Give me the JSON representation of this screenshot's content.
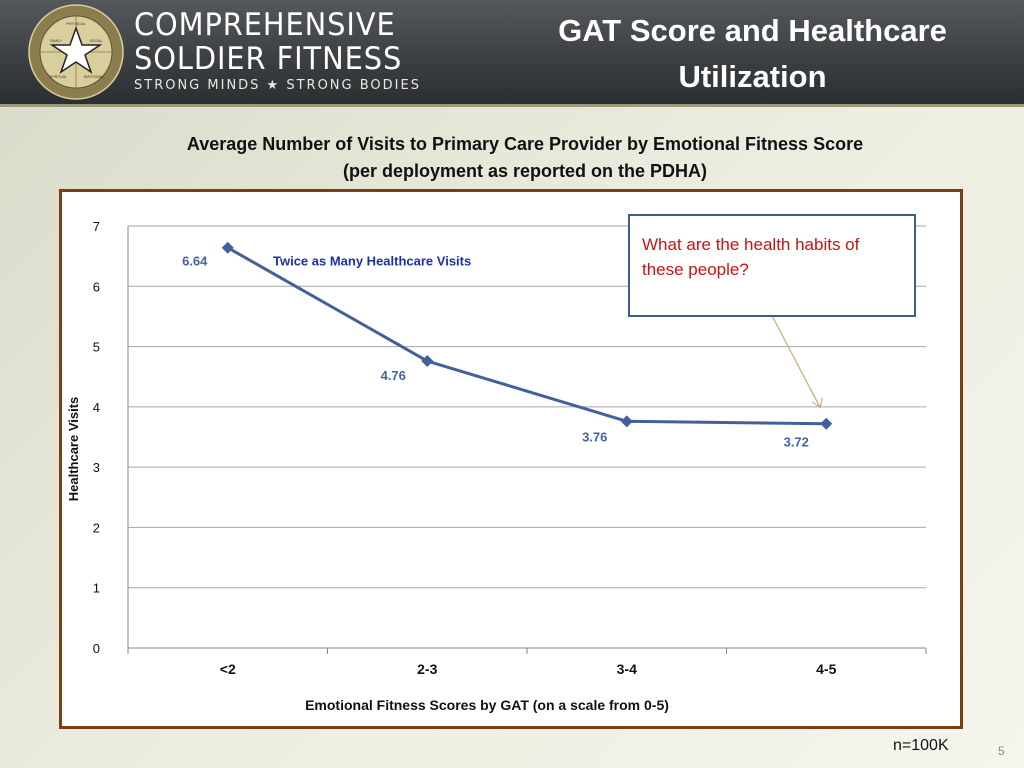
{
  "header": {
    "brand_line1": "COMPREHENSIVE",
    "brand_line2": "SOLDIER FITNESS",
    "brand_tagline": "STRONG MINDS ★ STRONG BODIES",
    "slide_title_line1": "GAT Score and Healthcare",
    "slide_title_line2": "Utilization",
    "seal": {
      "ring_text": "COMPREHENSIVE SOLDIER FITNESS",
      "segments": [
        "PHYSICAL",
        "FAMILY",
        "SOCIAL",
        "SPIRITUAL",
        "EMOTIONAL"
      ],
      "bottom_text": "STRONG MINDS ★ STRONG BODIES"
    }
  },
  "chart_title_line1": "Average Number of Visits to Primary Care Provider by Emotional Fitness Score",
  "chart_title_line2": "(per deployment as reported on the PDHA)",
  "chart_data": {
    "type": "line",
    "categories": [
      "<2",
      "2-3",
      "3-4",
      "4-5"
    ],
    "series": [
      {
        "values": [
          6.64,
          4.76,
          3.76,
          3.72
        ],
        "color": "#43609c"
      }
    ],
    "data_labels": [
      "6.64",
      "4.76",
      "3.76",
      "3.72"
    ],
    "ylabel": "Healthcare Visits",
    "xlabel": "Emotional Fitness Scores by GAT (on a scale from 0-5)",
    "ylim": [
      0,
      7
    ],
    "yticks": [
      0,
      1,
      2,
      3,
      4,
      5,
      6,
      7
    ],
    "grid": true,
    "annotations": [
      {
        "text": "Twice as Many Healthcare Visits",
        "color": "#1f2fa8"
      }
    ],
    "label_color": "#44649c"
  },
  "callout": {
    "text_line1": "What are the health habits  of",
    "text_line2": "these people?",
    "text_color": "#cc1111",
    "border_color": "#3c5c8c",
    "arrow_color": "#c9b27a"
  },
  "footer": {
    "sample_size": "n=100K",
    "page_number": "5"
  }
}
